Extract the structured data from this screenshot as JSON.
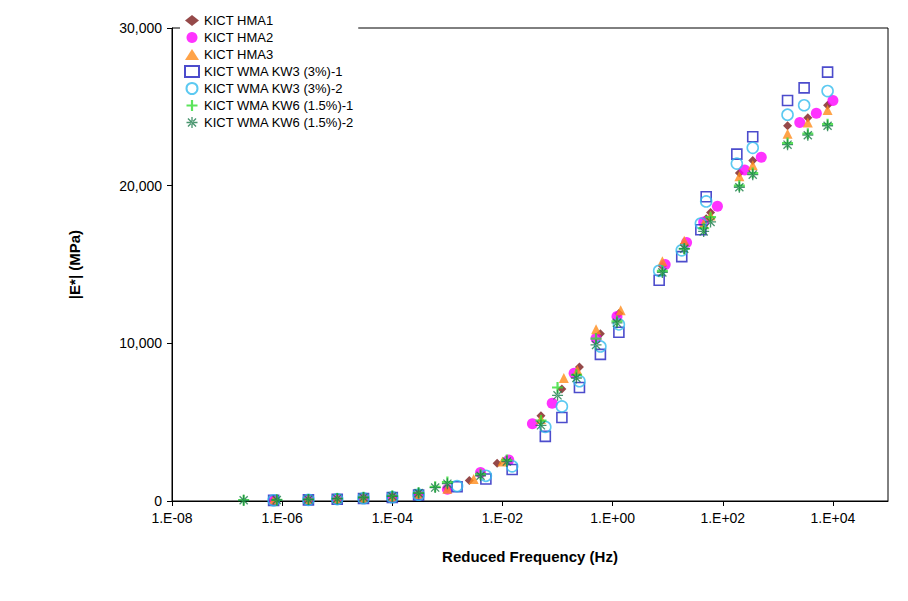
{
  "chart_data": {
    "type": "scatter",
    "x_label": "Reduced Frequency (Hz)",
    "y_label": "|E*| (MPa)",
    "log": "x",
    "grid": false,
    "legend": "top-left",
    "xlim": [
      1e-08,
      100000.0
    ],
    "xticks": [
      {
        "value": 1e-08,
        "label": "1.E-08"
      },
      {
        "value": 1e-06,
        "label": "1.E-06"
      },
      {
        "value": 0.0001,
        "label": "1.E-04"
      },
      {
        "value": 0.01,
        "label": "1.E-02"
      },
      {
        "value": 1,
        "label": "1.E+00"
      },
      {
        "value": 100,
        "label": "1.E+02"
      },
      {
        "value": 10000,
        "label": "1.E+04"
      }
    ],
    "ylim": [
      0,
      30000
    ],
    "yticks": [
      0,
      {
        "value": 10000,
        "label": "10,000"
      },
      {
        "value": 20000,
        "label": "20,000"
      },
      {
        "value": 30000,
        "label": "30,000"
      }
    ],
    "series": [
      {
        "name": "KICT HMA1",
        "color": "#7b1c1c",
        "marker": "diamond",
        "x": [
          7e-07,
          3e-06,
          1e-05,
          3e-05,
          0.0001,
          0.0003,
          0.001,
          0.0025,
          0.008,
          0.05,
          0.12,
          0.25,
          0.6,
          1.3,
          8,
          20,
          50,
          60,
          200,
          350,
          1500,
          3500,
          8000
        ],
        "values": [
          60,
          90,
          140,
          200,
          280,
          450,
          800,
          1300,
          2400,
          5400,
          7100,
          8500,
          10600,
          11900,
          14900,
          16300,
          17900,
          18300,
          20800,
          21600,
          23800,
          24300,
          25100
        ]
      },
      {
        "name": "KICT HMA2",
        "color": "#ff00ff",
        "marker": "circle",
        "x": [
          7e-07,
          3e-06,
          1e-05,
          3e-05,
          0.0001,
          0.0003,
          0.001,
          0.004,
          0.013,
          0.035,
          0.08,
          0.2,
          0.5,
          1.2,
          9,
          22,
          45,
          80,
          250,
          500,
          2500,
          5000,
          10000
        ],
        "values": [
          50,
          80,
          130,
          190,
          260,
          420,
          750,
          1800,
          2600,
          4900,
          6200,
          8100,
          10300,
          11700,
          15000,
          16400,
          17700,
          18700,
          21000,
          21800,
          24000,
          24600,
          25400
        ]
      },
      {
        "name": "KICT HMA3",
        "color": "#ff8c1a",
        "marker": "triangle",
        "x": [
          7e-07,
          3e-06,
          1e-05,
          3e-05,
          0.0001,
          0.0003,
          0.001,
          0.003,
          0.01,
          0.05,
          0.13,
          0.23,
          0.5,
          1.4,
          8,
          20,
          45,
          60,
          200,
          350,
          1500,
          3500,
          8000
        ],
        "values": [
          55,
          85,
          135,
          195,
          270,
          440,
          780,
          1400,
          2500,
          5200,
          7800,
          8300,
          10900,
          12100,
          15200,
          16500,
          17600,
          18100,
          20600,
          21300,
          23300,
          24000,
          24800
        ]
      },
      {
        "name": "KICT WMA KW3 (3%)-1",
        "color": "#1f1fbf",
        "marker": "square_open",
        "x": [
          7e-07,
          3e-06,
          1e-05,
          3e-05,
          0.0001,
          0.0003,
          0.0015,
          0.005,
          0.015,
          0.06,
          0.12,
          0.25,
          0.6,
          1.3,
          7,
          18,
          40,
          50,
          180,
          350,
          1500,
          3000,
          8000
        ],
        "values": [
          40,
          70,
          110,
          160,
          220,
          380,
          900,
          1400,
          2000,
          4100,
          5300,
          7200,
          9300,
          10700,
          14000,
          15500,
          17200,
          19300,
          22000,
          23100,
          25400,
          26200,
          27200
        ]
      },
      {
        "name": "KICT WMA KW3 (3%)-2",
        "color": "#33bbee",
        "marker": "circle_open",
        "x": [
          7e-07,
          3e-06,
          1e-05,
          3e-05,
          0.0001,
          0.0003,
          0.0015,
          0.005,
          0.015,
          0.06,
          0.12,
          0.25,
          0.6,
          1.3,
          7,
          18,
          40,
          50,
          180,
          350,
          1500,
          3000,
          8000
        ],
        "values": [
          45,
          75,
          120,
          175,
          240,
          400,
          950,
          1600,
          2200,
          4700,
          6000,
          7600,
          9800,
          11200,
          14600,
          15900,
          17600,
          19000,
          21400,
          22400,
          24500,
          25100,
          26000
        ]
      },
      {
        "name": "KICT WMA KW6 (1.5%)-1",
        "color": "#33dd33",
        "marker": "plus",
        "x": [
          2e-07,
          8e-07,
          3e-06,
          1e-05,
          3e-05,
          0.0001,
          0.0003,
          0.0006,
          0.001,
          0.004,
          0.012,
          0.05,
          0.1,
          0.22,
          0.5,
          1.2,
          8,
          20,
          45,
          60,
          200,
          350,
          1500,
          3500,
          8000
        ],
        "values": [
          50,
          70,
          100,
          160,
          230,
          320,
          520,
          900,
          1200,
          1700,
          2600,
          5100,
          7200,
          8000,
          10300,
          11400,
          14600,
          16000,
          17300,
          18000,
          20000,
          20800,
          22700,
          23300,
          23900
        ]
      },
      {
        "name": "KICT WMA KW6 (1.5%)-2",
        "color": "#1a7a4a",
        "marker": "asterisk",
        "x": [
          2e-07,
          8e-07,
          3e-06,
          1e-05,
          3e-05,
          0.0001,
          0.0003,
          0.0006,
          0.001,
          0.004,
          0.012,
          0.05,
          0.1,
          0.22,
          0.5,
          1.2,
          8,
          20,
          45,
          60,
          200,
          350,
          1500,
          3500,
          8000
        ],
        "values": [
          45,
          65,
          95,
          150,
          220,
          300,
          500,
          850,
          1100,
          1600,
          2500,
          4800,
          6700,
          7800,
          9900,
          11300,
          14500,
          16000,
          17100,
          17700,
          19900,
          20700,
          22600,
          23200,
          23800
        ]
      }
    ]
  }
}
